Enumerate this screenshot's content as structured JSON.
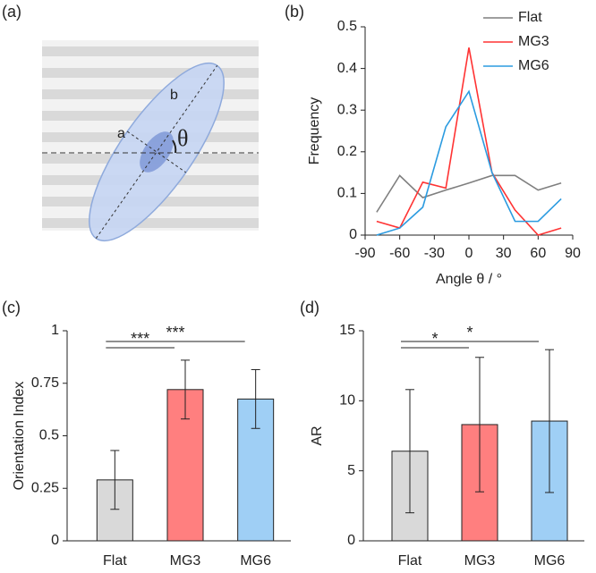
{
  "diagram": {
    "panel_label": "(a)",
    "labels": {
      "a": "a",
      "b": "b",
      "theta": "θ"
    }
  },
  "chart_data": [
    {
      "type": "line",
      "panel_label": "(b)",
      "x_label": "Angle θ / °",
      "y_label": "Frequency",
      "x": [
        -80,
        -60,
        -40,
        -20,
        0,
        20,
        40,
        60,
        80
      ],
      "series": [
        {
          "name": "Flat",
          "color": "#7f7f7f",
          "values": [
            0.055,
            0.143,
            0.09,
            0.108,
            0.125,
            0.143,
            0.143,
            0.108,
            0.125
          ]
        },
        {
          "name": "MG3",
          "color": "#ff3333",
          "values": [
            0.033,
            0.017,
            0.127,
            0.113,
            0.45,
            0.15,
            0.06,
            0,
            0.017
          ]
        },
        {
          "name": "MG6",
          "color": "#2b9be0",
          "values": [
            0,
            0.017,
            0.067,
            0.26,
            0.345,
            0.15,
            0.033,
            0.033,
            0.087
          ]
        }
      ],
      "xlim": [
        -90,
        90
      ],
      "xticks": [
        -90,
        -60,
        -30,
        0,
        30,
        60,
        90
      ],
      "ylim": [
        0,
        0.5
      ],
      "yticks": [
        0,
        0.1,
        0.2,
        0.3,
        0.4,
        0.5
      ],
      "legend": "top-right"
    },
    {
      "type": "bar",
      "panel_label": "(c)",
      "y_label": "Orientation Index",
      "categories": [
        "Flat",
        "MG3",
        "MG6"
      ],
      "values": [
        0.29,
        0.72,
        0.675
      ],
      "errors": [
        0.14,
        0.14,
        0.14
      ],
      "colors": [
        "#d9d9d9",
        "#ff7f7f",
        "#9fcff5"
      ],
      "ylim": [
        0,
        1
      ],
      "yticks": [
        0,
        0.25,
        0.5,
        0.75,
        1
      ],
      "significance": [
        {
          "label": "***",
          "pair": [
            0,
            1
          ]
        },
        {
          "label": "***",
          "pair": [
            0,
            2
          ]
        }
      ]
    },
    {
      "type": "bar",
      "panel_label": "(d)",
      "y_label": "AR",
      "categories": [
        "Flat",
        "MG3",
        "MG6"
      ],
      "values": [
        6.4,
        8.3,
        8.55
      ],
      "errors": [
        4.4,
        4.8,
        5.1
      ],
      "colors": [
        "#d9d9d9",
        "#ff7f7f",
        "#9fcff5"
      ],
      "ylim": [
        0,
        15
      ],
      "yticks": [
        0,
        5,
        10,
        15
      ],
      "significance": [
        {
          "label": "*",
          "pair": [
            0,
            1
          ]
        },
        {
          "label": "*",
          "pair": [
            0,
            2
          ]
        }
      ]
    }
  ]
}
